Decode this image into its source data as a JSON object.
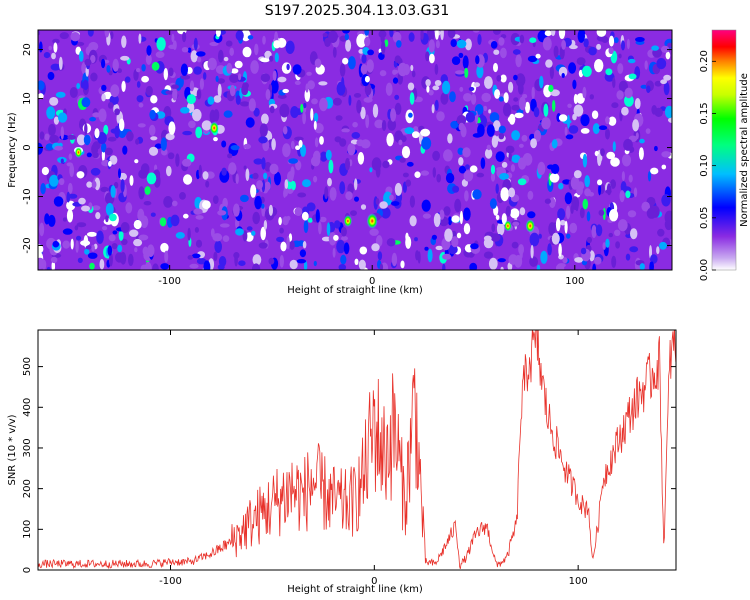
{
  "title": "S197.2025.304.13.03.G31",
  "chart_data": [
    {
      "type": "heatmap",
      "xlabel": "Height of straight line (km)",
      "ylabel": "Frequency (Hz)",
      "xlim": [
        -165,
        148
      ],
      "ylim": [
        -25,
        24
      ],
      "xticks": [
        -100,
        0,
        100
      ],
      "yticks": [
        -20,
        -10,
        0,
        10,
        20
      ],
      "xtick_labels": [
        "-100",
        "0",
        "100"
      ],
      "ytick_labels": [
        "-20",
        "-10",
        "0",
        "10",
        "20"
      ],
      "colorbar": {
        "label": "Normalized spectral amplitude",
        "range": [
          0,
          0.23
        ],
        "ticks": [
          0.0,
          0.05,
          0.1,
          0.15,
          0.2
        ],
        "tick_labels": [
          "0.00",
          "0.05",
          "0.10",
          "0.15",
          "0.20"
        ],
        "colormap": [
          "#ffffff",
          "#8a2be2",
          "#0000ff",
          "#00ffff",
          "#00ff00",
          "#ffff00",
          "#ff8000",
          "#ff0000",
          "#ff0080"
        ]
      },
      "hotspots": [
        {
          "x": 0,
          "y": -15,
          "value": 0.2
        },
        {
          "x": -12,
          "y": -15,
          "value": 0.12
        },
        {
          "x": 78,
          "y": -16,
          "value": 0.15
        },
        {
          "x": 67,
          "y": -16,
          "value": 0.1
        },
        {
          "x": -78,
          "y": 4,
          "value": 0.14
        },
        {
          "x": -145,
          "y": -1,
          "value": 0.1
        }
      ]
    },
    {
      "type": "line",
      "xlabel": "Height of straight line (km)",
      "ylabel": "SNR (10 * v/v)",
      "xlim": [
        -165,
        148
      ],
      "ylim": [
        0,
        590
      ],
      "xticks": [
        -100,
        0,
        100
      ],
      "yticks": [
        0,
        100,
        200,
        300,
        400,
        500
      ],
      "xtick_labels": [
        "-100",
        "0",
        "100"
      ],
      "ytick_labels": [
        "0",
        "100",
        "200",
        "300",
        "400",
        "500"
      ],
      "series": [
        {
          "name": "SNR",
          "color": "#e8312a",
          "x": [
            -165,
            -140,
            -110,
            -100,
            -90,
            -80,
            -70,
            -60,
            -50,
            -40,
            -35,
            -30,
            -25,
            -20,
            -15,
            -10,
            -5,
            0,
            5,
            10,
            15,
            20,
            25,
            30,
            35,
            40,
            42,
            45,
            50,
            55,
            60,
            65,
            70,
            72,
            75,
            78,
            80,
            82,
            85,
            90,
            95,
            100,
            103,
            105,
            107,
            110,
            112,
            115,
            120,
            125,
            130,
            135,
            140,
            142,
            145,
            148
          ],
          "y": [
            15,
            15,
            15,
            20,
            20,
            40,
            70,
            120,
            160,
            200,
            180,
            220,
            190,
            170,
            160,
            170,
            230,
            360,
            280,
            350,
            160,
            420,
            20,
            15,
            60,
            110,
            10,
            30,
            90,
            110,
            10,
            30,
            120,
            400,
            500,
            540,
            560,
            470,
            380,
            300,
            230,
            180,
            150,
            160,
            20,
            120,
            220,
            260,
            320,
            380,
            430,
            470,
            510,
            50,
            520,
            560
          ]
        }
      ]
    }
  ]
}
